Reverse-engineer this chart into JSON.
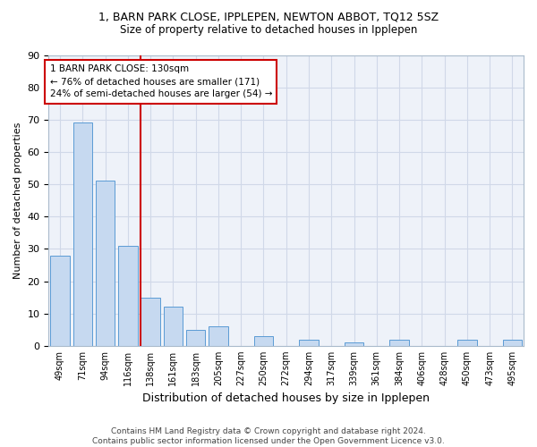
{
  "title": "1, BARN PARK CLOSE, IPPLEPEN, NEWTON ABBOT, TQ12 5SZ",
  "subtitle": "Size of property relative to detached houses in Ipplepen",
  "xlabel": "Distribution of detached houses by size in Ipplepen",
  "ylabel": "Number of detached properties",
  "bar_labels": [
    "49sqm",
    "71sqm",
    "94sqm",
    "116sqm",
    "138sqm",
    "161sqm",
    "183sqm",
    "205sqm",
    "227sqm",
    "250sqm",
    "272sqm",
    "294sqm",
    "317sqm",
    "339sqm",
    "361sqm",
    "384sqm",
    "406sqm",
    "428sqm",
    "450sqm",
    "473sqm",
    "495sqm"
  ],
  "bar_values": [
    28,
    69,
    51,
    31,
    15,
    12,
    5,
    6,
    0,
    3,
    0,
    2,
    0,
    1,
    0,
    2,
    0,
    0,
    2,
    0,
    2
  ],
  "bar_color": "#c6d9f0",
  "bar_edge_color": "#5b9bd5",
  "grid_color": "#d0d8e8",
  "bg_color": "#eef2f9",
  "vline_color": "#cc0000",
  "annotation_line1": "1 BARN PARK CLOSE: 130sqm",
  "annotation_line2": "← 76% of detached houses are smaller (171)",
  "annotation_line3": "24% of semi-detached houses are larger (54) →",
  "annotation_box_color": "#cc0000",
  "footer": "Contains HM Land Registry data © Crown copyright and database right 2024.\nContains public sector information licensed under the Open Government Licence v3.0.",
  "ylim": [
    0,
    90
  ],
  "yticks": [
    0,
    10,
    20,
    30,
    40,
    50,
    60,
    70,
    80,
    90
  ]
}
